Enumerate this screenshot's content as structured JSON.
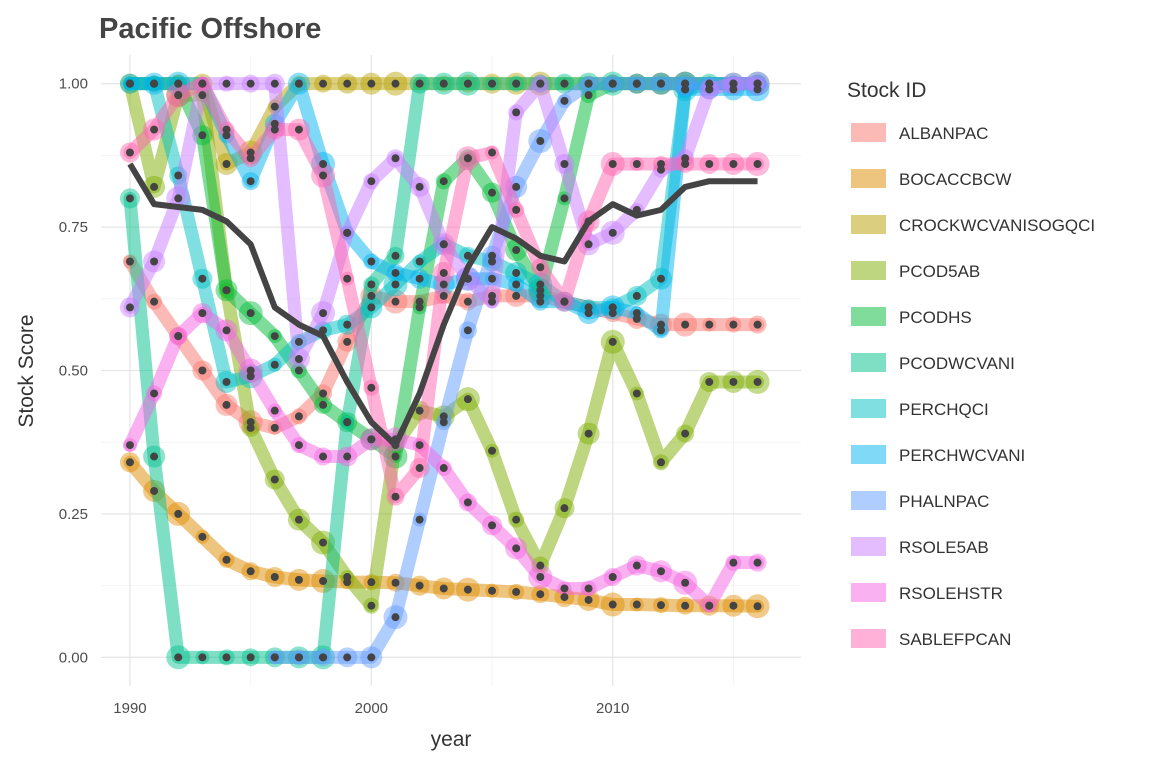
{
  "chart_data": {
    "type": "line",
    "title": "Pacific Offshore",
    "xlabel": "year",
    "ylabel": "Stock Score",
    "xlim": [
      1988.8,
      2017.8
    ],
    "ylim": [
      -0.05,
      1.05
    ],
    "x_ticks": [
      1990,
      2000,
      2010
    ],
    "x_tick_labels": [
      "1990",
      "2000",
      "2010"
    ],
    "y_ticks": [
      0,
      0.25,
      0.5,
      0.75,
      1
    ],
    "y_tick_labels": [
      "0.00",
      "0.25",
      "0.50",
      "0.75",
      "1.00"
    ],
    "grid": true,
    "legend_title": "Stock ID",
    "legend_position": "right",
    "series": [
      {
        "name": "ALBANPAC",
        "color": "#F8766D",
        "start": 1990,
        "values": [
          0.69,
          0.62,
          0.56,
          0.5,
          0.44,
          0.41,
          0.4,
          0.42,
          0.46,
          0.55,
          0.63,
          0.62,
          0.62,
          0.63,
          0.62,
          0.63,
          0.63,
          0.63,
          0.62,
          0.61,
          0.6,
          0.59,
          0.58,
          0.58,
          0.58,
          0.58,
          0.58
        ]
      },
      {
        "name": "BOCACCBCW",
        "color": "#DE8C00",
        "start": 1990,
        "values": [
          0.34,
          0.29,
          0.25,
          0.21,
          0.17,
          0.15,
          0.14,
          0.135,
          0.133,
          0.131,
          0.131,
          0.13,
          0.125,
          0.12,
          0.118,
          0.116,
          0.114,
          0.11,
          0.105,
          0.1,
          0.092,
          0.092,
          0.091,
          0.09,
          0.09,
          0.09,
          0.089
        ]
      },
      {
        "name": "CROCKWCVANISOGQCI",
        "color": "#B79F00",
        "start": 1990,
        "values": [
          1.0,
          1.0,
          1.0,
          1.0,
          0.86,
          0.88,
          0.96,
          1.0,
          1.0,
          1.0,
          1.0,
          1.0,
          1.0,
          1.0,
          1.0,
          1.0,
          1.0,
          1.0,
          1.0,
          1.0,
          1.0,
          1.0,
          1.0,
          1.0,
          1.0,
          1.0,
          1.0
        ]
      },
      {
        "name": "PCOD5AB",
        "color": "#7CAE00",
        "start": 1990,
        "values": [
          1.0,
          0.82,
          0.98,
          0.98,
          0.64,
          0.4,
          0.31,
          0.24,
          0.2,
          0.14,
          0.09,
          0.37,
          0.43,
          0.42,
          0.45,
          0.36,
          0.24,
          0.16,
          0.26,
          0.39,
          0.55,
          0.46,
          0.34,
          0.39,
          0.48,
          0.48,
          0.48
        ]
      },
      {
        "name": "PCODHS",
        "color": "#00BA38",
        "start": 1990,
        "values": [
          1.0,
          1.0,
          1.0,
          0.91,
          0.64,
          0.6,
          0.56,
          0.5,
          0.44,
          0.41,
          0.38,
          0.35,
          0.61,
          0.83,
          0.87,
          0.81,
          0.71,
          0.64,
          0.8,
          0.98,
          1.0,
          1.0,
          1.0,
          1.0,
          1.0,
          1.0,
          1.0
        ]
      },
      {
        "name": "PCODWCVANI",
        "color": "#00C08B",
        "start": 1990,
        "values": [
          0.8,
          0.35,
          0.0,
          0.0,
          0.0,
          0.0,
          0.0,
          0.0,
          0.0,
          0.41,
          0.65,
          0.7,
          1.0,
          1.0,
          1.0,
          1.0,
          1.0,
          1.0,
          1.0,
          1.0,
          1.0,
          1.0,
          1.0,
          1.0,
          1.0,
          1.0,
          1.0
        ]
      },
      {
        "name": "PERCHQCI",
        "color": "#00BFC4",
        "start": 1990,
        "values": [
          1.0,
          1.0,
          0.84,
          0.66,
          0.48,
          0.49,
          0.51,
          0.55,
          0.57,
          0.58,
          0.61,
          0.65,
          0.69,
          0.72,
          0.7,
          0.69,
          0.67,
          0.65,
          0.62,
          0.61,
          0.61,
          0.63,
          0.66,
          0.99,
          1.0,
          1.0,
          1.0
        ]
      },
      {
        "name": "PERCHWCVANI",
        "color": "#00B4F0",
        "start": 1990,
        "values": [
          1.0,
          1.0,
          1.0,
          1.0,
          0.91,
          0.83,
          0.93,
          1.0,
          0.86,
          0.74,
          0.69,
          0.67,
          0.66,
          0.65,
          0.66,
          0.66,
          0.65,
          0.62,
          0.62,
          0.6,
          0.61,
          0.6,
          0.57,
          0.99,
          0.99,
          0.99,
          0.99
        ]
      },
      {
        "name": "PHALNPAC",
        "color": "#619CFF",
        "start": 1996,
        "values": [
          0.0,
          0.0,
          0.0,
          0.0,
          0.0,
          0.07,
          0.24,
          0.41,
          0.57,
          0.7,
          0.82,
          0.9,
          0.97,
          1.0,
          1.0,
          1.0,
          1.0,
          1.0,
          1.0,
          1.0,
          1.0
        ]
      },
      {
        "name": "RSOLE5AB",
        "color": "#C77CFF",
        "start": 1990,
        "values": [
          0.61,
          0.69,
          0.8,
          1.0,
          1.0,
          1.0,
          1.0,
          0.52,
          0.6,
          0.74,
          0.83,
          0.87,
          0.82,
          0.72,
          0.66,
          0.62,
          0.95,
          1.0,
          0.86,
          0.72,
          0.74,
          0.78,
          0.85,
          0.87,
          0.99,
          1.0,
          1.0
        ]
      },
      {
        "name": "RSOLEHSTR",
        "color": "#F564E3",
        "start": 1990,
        "values": [
          0.37,
          0.46,
          0.56,
          0.6,
          0.57,
          0.5,
          0.43,
          0.37,
          0.35,
          0.35,
          0.38,
          0.38,
          0.37,
          0.33,
          0.27,
          0.23,
          0.19,
          0.14,
          0.12,
          0.12,
          0.14,
          0.16,
          0.15,
          0.13,
          0.09,
          0.165,
          0.165
        ]
      },
      {
        "name": "SABLEFPCAN",
        "color": "#FF64B0",
        "start": 1990,
        "values": [
          0.88,
          0.92,
          0.98,
          1.0,
          0.92,
          0.87,
          0.92,
          0.92,
          0.84,
          0.66,
          0.47,
          0.28,
          0.33,
          0.67,
          0.87,
          0.88,
          0.78,
          0.68,
          0.62,
          0.76,
          0.86,
          0.86,
          0.86,
          0.86,
          0.86,
          0.86,
          0.86
        ]
      }
    ],
    "mean_line": {
      "color": "#444444",
      "start": 1990,
      "values": [
        0.86,
        0.79,
        0.785,
        0.78,
        0.76,
        0.72,
        0.61,
        0.58,
        0.56,
        0.48,
        0.41,
        0.37,
        0.46,
        0.58,
        0.68,
        0.75,
        0.73,
        0.7,
        0.69,
        0.76,
        0.79,
        0.77,
        0.78,
        0.82,
        0.83,
        0.83,
        0.83
      ]
    }
  }
}
